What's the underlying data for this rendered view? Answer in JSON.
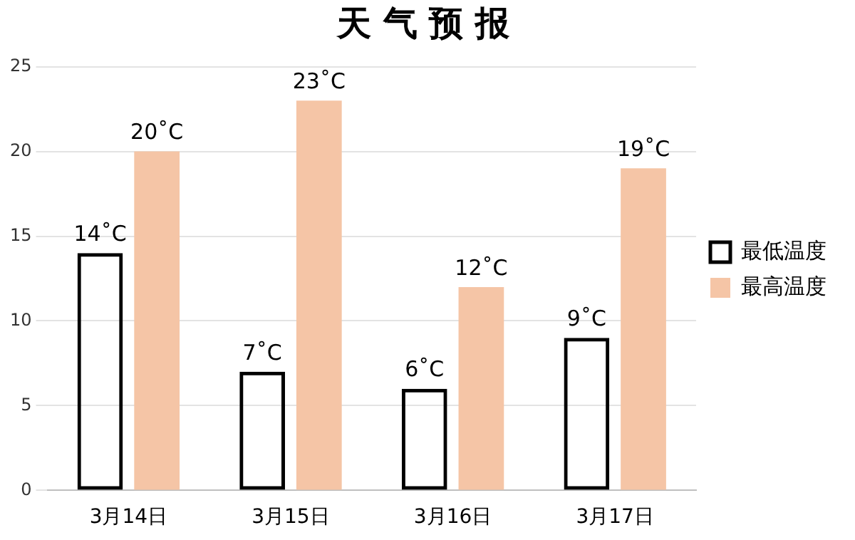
{
  "chart_data": {
    "type": "bar",
    "title": "天 气 预 报",
    "categories": [
      "3月14日",
      "3月15日",
      "3月16日",
      "3月17日"
    ],
    "series": [
      {
        "name": "最低温度",
        "color": "#000000",
        "values": [
          14,
          7,
          6,
          9
        ],
        "value_labels": [
          "14˚C",
          "7˚C",
          "6˚C",
          "9˚C"
        ]
      },
      {
        "name": "最高温度",
        "color": "#f5c5a6",
        "values": [
          20,
          23,
          12,
          19
        ],
        "value_labels": [
          "20˚C",
          "23˚C",
          "12˚C",
          "19˚C"
        ]
      }
    ],
    "ylim": [
      0,
      25
    ],
    "yticks": [
      0,
      5,
      10,
      15,
      20,
      25
    ],
    "grid": "y",
    "legend": "right"
  }
}
